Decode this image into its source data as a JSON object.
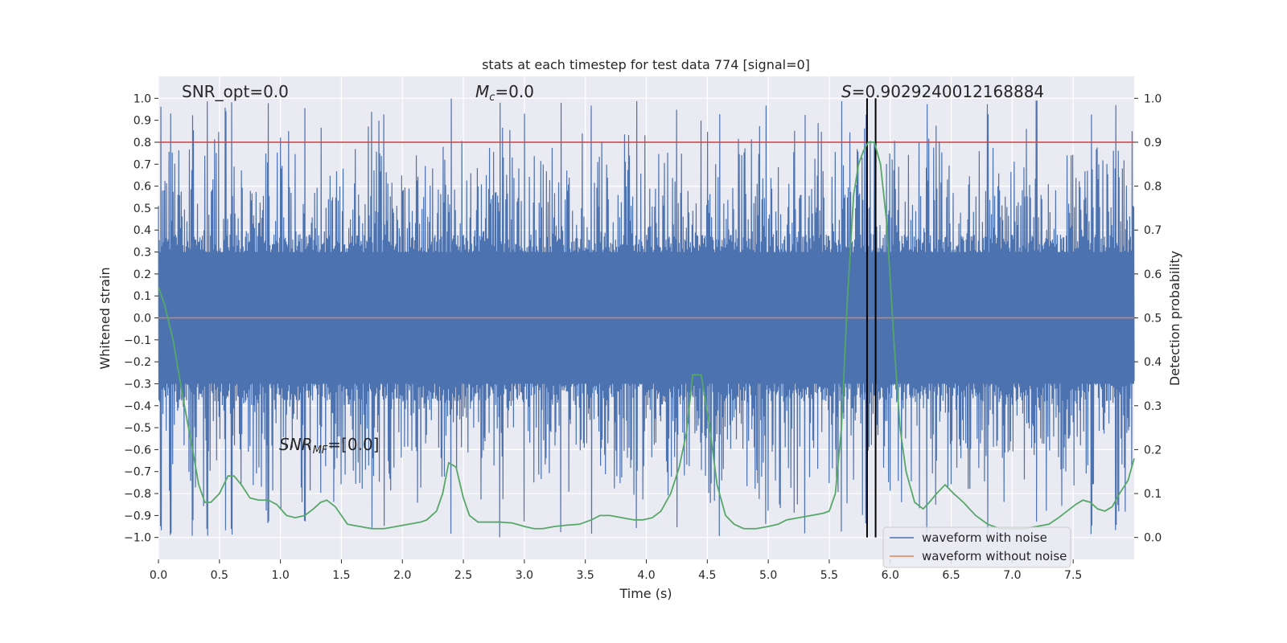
{
  "chart_data": {
    "type": "line",
    "title": "stats at each timestep for test data 774 [signal=0]",
    "xlabel": "Time (s)",
    "ylabel": "Whitened strain",
    "ylabel_right": "Detection probability",
    "xlim": [
      0.0,
      8.0
    ],
    "ylim": [
      -1.1,
      1.1
    ],
    "ylim_right": [
      -0.05,
      1.05
    ],
    "x_ticks": [
      "0.0",
      "0.5",
      "1.0",
      "1.5",
      "2.0",
      "2.5",
      "3.0",
      "3.5",
      "4.0",
      "4.5",
      "5.0",
      "5.5",
      "6.0",
      "6.5",
      "7.0",
      "7.5"
    ],
    "y_ticks": [
      "1.0",
      "0.9",
      "0.8",
      "0.7",
      "0.6",
      "0.5",
      "0.4",
      "0.3",
      "0.2",
      "0.1",
      "0.0",
      "−0.1",
      "−0.2",
      "−0.3",
      "−0.4",
      "−0.5",
      "−0.6",
      "−0.7",
      "−0.8",
      "−0.9",
      "−1.0"
    ],
    "y_ticks_right": [
      "1.0",
      "0.9",
      "0.8",
      "0.7",
      "0.6",
      "0.5",
      "0.4",
      "0.3",
      "0.2",
      "0.1",
      "0.0"
    ],
    "grid": true,
    "legend_position": "lower-right",
    "annotations": {
      "snr_opt": "SNR_opt=0.0",
      "mc_symbol": "M",
      "mc_sub": "c",
      "mc_value": "=0.0",
      "s_symbol": "S",
      "s_value": "=0.9029240012168884",
      "snr_mf_symbol": "SNR",
      "snr_mf_sub": "MF",
      "snr_mf_value": "=[0.0]"
    },
    "threshold_right": 0.9,
    "detection_window": [
      5.81,
      5.88
    ],
    "series": [
      {
        "name": "waveform with noise",
        "color": "#4c72b0",
        "axis": "left",
        "description_values": "dense noise, core within ±0.3, spikes to about ±1.0",
        "peak_times": [
          0.02,
          0.1,
          0.28,
          0.4,
          0.55,
          0.6,
          0.9,
          1.2,
          1.75,
          1.85,
          2.4,
          2.8,
          3.0,
          3.3,
          3.55,
          3.92,
          4.25,
          4.6,
          4.98,
          5.3,
          5.6,
          5.8,
          6.3,
          6.8,
          7.2,
          7.65,
          7.85
        ]
      },
      {
        "name": "waveform without noise",
        "color": "#dd8452",
        "axis": "left",
        "x": [
          0.0,
          8.0
        ],
        "y": [
          0.0,
          0.0
        ]
      },
      {
        "name": "detection probability",
        "color": "#55a868",
        "axis": "right",
        "x": [
          0.0,
          0.05,
          0.12,
          0.2,
          0.28,
          0.33,
          0.38,
          0.43,
          0.5,
          0.57,
          0.62,
          0.68,
          0.75,
          0.82,
          0.9,
          0.97,
          1.05,
          1.12,
          1.2,
          1.27,
          1.33,
          1.38,
          1.45,
          1.5,
          1.55,
          1.65,
          1.75,
          1.85,
          1.95,
          2.05,
          2.15,
          2.2,
          2.28,
          2.33,
          2.38,
          2.44,
          2.5,
          2.55,
          2.62,
          2.7,
          2.8,
          2.9,
          3.0,
          3.08,
          3.15,
          3.25,
          3.35,
          3.45,
          3.55,
          3.62,
          3.7,
          3.8,
          3.9,
          3.97,
          4.05,
          4.12,
          4.2,
          4.27,
          4.33,
          4.38,
          4.45,
          4.52,
          4.58,
          4.65,
          4.72,
          4.8,
          4.9,
          5.0,
          5.08,
          5.15,
          5.25,
          5.35,
          5.45,
          5.5,
          5.55,
          5.6,
          5.65,
          5.7,
          5.74,
          5.78,
          5.82,
          5.87,
          5.92,
          5.97,
          6.03,
          6.08,
          6.13,
          6.2,
          6.27,
          6.32,
          6.38,
          6.45,
          6.52,
          6.6,
          6.7,
          6.8,
          6.9,
          7.0,
          7.1,
          7.2,
          7.3,
          7.38,
          7.45,
          7.52,
          7.58,
          7.64,
          7.7,
          7.76,
          7.82,
          7.88,
          7.95,
          8.0
        ],
        "y": [
          0.57,
          0.53,
          0.45,
          0.32,
          0.2,
          0.12,
          0.08,
          0.08,
          0.1,
          0.14,
          0.14,
          0.12,
          0.09,
          0.085,
          0.085,
          0.075,
          0.05,
          0.045,
          0.05,
          0.065,
          0.08,
          0.085,
          0.07,
          0.05,
          0.03,
          0.025,
          0.02,
          0.02,
          0.025,
          0.03,
          0.035,
          0.04,
          0.06,
          0.1,
          0.17,
          0.16,
          0.09,
          0.05,
          0.035,
          0.035,
          0.035,
          0.033,
          0.025,
          0.02,
          0.02,
          0.025,
          0.028,
          0.03,
          0.04,
          0.05,
          0.05,
          0.045,
          0.04,
          0.04,
          0.045,
          0.06,
          0.1,
          0.16,
          0.24,
          0.37,
          0.37,
          0.25,
          0.12,
          0.05,
          0.03,
          0.02,
          0.02,
          0.025,
          0.03,
          0.04,
          0.045,
          0.05,
          0.055,
          0.06,
          0.1,
          0.25,
          0.55,
          0.78,
          0.85,
          0.88,
          0.9,
          0.9,
          0.85,
          0.72,
          0.45,
          0.25,
          0.15,
          0.08,
          0.065,
          0.08,
          0.1,
          0.12,
          0.1,
          0.08,
          0.05,
          0.03,
          0.02,
          0.02,
          0.02,
          0.025,
          0.03,
          0.045,
          0.06,
          0.075,
          0.085,
          0.08,
          0.065,
          0.06,
          0.07,
          0.1,
          0.13,
          0.18
        ]
      }
    ]
  }
}
